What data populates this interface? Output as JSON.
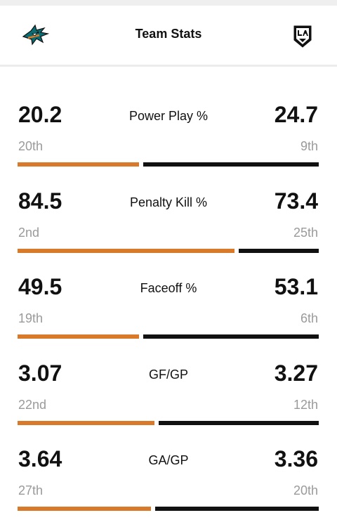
{
  "header": {
    "title": "Team Stats",
    "home_logo_icon": "sharks-logo-icon",
    "away_logo_icon": "kings-logo-icon"
  },
  "colors": {
    "home_bar": "#d97a2b",
    "away_bar": "#111111",
    "rank_text": "#9a9a9a"
  },
  "stats": [
    {
      "label": "Power Play %",
      "home_value": "20.2",
      "home_rank": "20th",
      "away_value": "24.7",
      "away_rank": "9th",
      "home_share": 0.41
    },
    {
      "label": "Penalty Kill %",
      "home_value": "84.5",
      "home_rank": "2nd",
      "away_value": "73.4",
      "away_rank": "25th",
      "home_share": 0.73
    },
    {
      "label": "Faceoff %",
      "home_value": "49.5",
      "home_rank": "19th",
      "away_value": "53.1",
      "away_rank": "6th",
      "home_share": 0.41
    },
    {
      "label": "GF/GP",
      "home_value": "3.07",
      "home_rank": "22nd",
      "away_value": "3.27",
      "away_rank": "12th",
      "home_share": 0.46
    },
    {
      "label": "GA/GP",
      "home_value": "3.64",
      "home_rank": "27th",
      "away_value": "3.36",
      "away_rank": "20th",
      "home_share": 0.45
    }
  ]
}
